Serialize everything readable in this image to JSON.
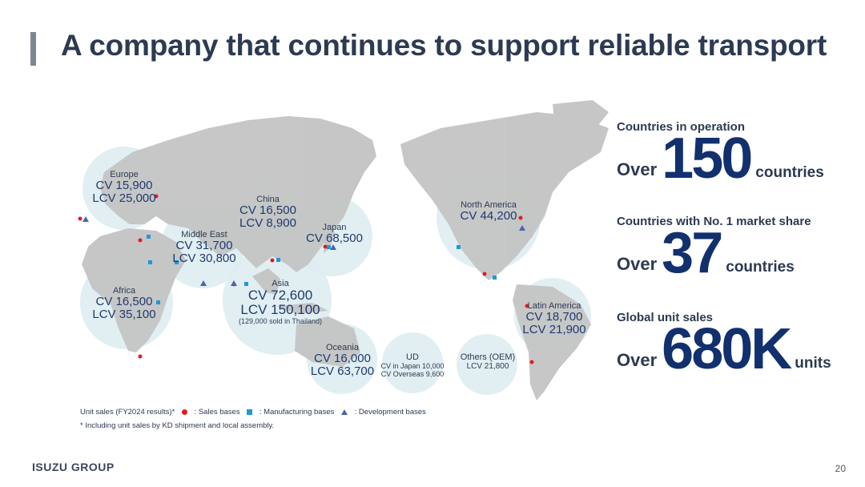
{
  "title": "A company that continues to support reliable transport",
  "regions": {
    "europe": {
      "name": "Europe",
      "lines": [
        "CV 15,900",
        "LCV 25,000"
      ]
    },
    "china": {
      "name": "China",
      "lines": [
        "CV 16,500",
        "LCV 8,900"
      ]
    },
    "japan": {
      "name": "Japan",
      "lines": [
        "CV 68,500"
      ]
    },
    "middle_east": {
      "name": "Middle East",
      "lines": [
        "CV 31,700",
        "LCV 30,800"
      ]
    },
    "africa": {
      "name": "Africa",
      "lines": [
        "CV 16,500",
        "LCV 35,100"
      ]
    },
    "asia": {
      "name": "Asia",
      "lines": [
        "CV 72,600",
        "LCV 150,100"
      ],
      "note": "(129,000 sold in Thailand)"
    },
    "oceania": {
      "name": "Oceania",
      "lines": [
        "CV 16,000",
        "LCV 63,700"
      ]
    },
    "ud": {
      "name": "UD",
      "lines": [
        "CV in Japan 10,000",
        "CV Overseas 9,600"
      ]
    },
    "others": {
      "name": "Others (OEM)",
      "lines": [
        "LCV 21,800"
      ]
    },
    "north_america": {
      "name": "North America",
      "lines": [
        "CV 44,200"
      ]
    },
    "latin_america": {
      "name": "Latin America",
      "lines": [
        "CV 18,700",
        "LCV 21,900"
      ]
    }
  },
  "stats": [
    {
      "label": "Countries in operation",
      "prefix": "Over",
      "value": "150",
      "suffix": "countries"
    },
    {
      "label": "Countries with No. 1 market share",
      "prefix": "Over",
      "value": "37",
      "suffix": "countries"
    },
    {
      "label": "Global unit sales",
      "prefix": "Over",
      "value": "680K",
      "suffix": "units"
    }
  ],
  "legend": {
    "unit_sales": "Unit sales (FY2024 results)*",
    "sales": ": Sales bases",
    "manufacturing": ": Manufacturing bases",
    "development": ": Development bases"
  },
  "note": "* Including unit sales by KD shipment and local assembly.",
  "footer": {
    "brand": "ISUZU GROUP",
    "page": "20"
  },
  "colors": {
    "title": "#2c3a52",
    "accent": "#12306e",
    "map": "#c9c9c9",
    "circle": "#e3f0f4",
    "sales": "#e21b23",
    "manufacturing": "#1e9ad6",
    "development": "#4a63b0"
  }
}
